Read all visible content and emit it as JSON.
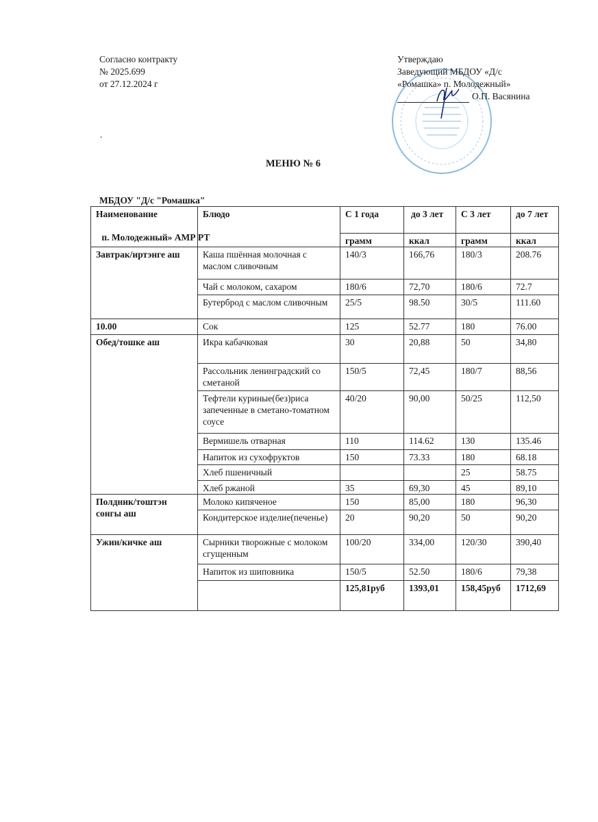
{
  "left_header": [
    "Согласно контракту",
    "№ 2025.699",
    "от 27.12.2024 г"
  ],
  "right_header": {
    "line1": "Утверждаю",
    "line2": "Заведующий МБДОУ «Д/с",
    "line3": "«Ромашка» п. Молодежный»",
    "signer": "О.П. Васянина"
  },
  "stamp_color": "#7fb3dc",
  "dot": ".",
  "title": "МЕНЮ № 6",
  "org": [
    "МБДОУ \"Д/с \"Ромашка\"",
    " п. Молодежный» АМР РТ"
  ],
  "table": {
    "headers": [
      "Наименование",
      "Блюдо",
      "С 1 года",
      "до 3 лет",
      "С 3 лет",
      "до 7 лет"
    ],
    "subheaders": [
      "грамм",
      "ккал",
      "грамм",
      "ккал"
    ],
    "rows": [
      {
        "meal": "Завтрак/иртэнге аш",
        "dish": "Каша пшённая молочная с маслом сливочным",
        "g1": "140/3",
        "k1": "166,76",
        "g2": "180/3",
        "k2": "208.76"
      },
      {
        "meal": "",
        "dish": "Чай с молоком, сахаром",
        "g1": "180/6",
        "k1": "72,70",
        "g2": "180/6",
        "k2": "72.7"
      },
      {
        "meal": "",
        "dish": "Бутерброд с  маслом сливочным",
        "g1": "25/5",
        "k1": "98.50",
        "g2": "30/5",
        "k2": "111.60"
      },
      {
        "meal": "10.00",
        "dish": "Сок",
        "g1": "125",
        "k1": "52.77",
        "g2": "180",
        "k2": "76.00"
      },
      {
        "meal": "Обед/тошке аш",
        "dish": "Икра кабачковая",
        "g1": "30",
        "k1": "20,88",
        "g2": "50",
        "k2": "34,80"
      },
      {
        "meal": "",
        "dish": "Рассольник ленинградский со сметаной",
        "g1": "150/5",
        "k1": "72,45",
        "g2": "180/7",
        "k2": "88,56"
      },
      {
        "meal": "",
        "dish": "Тефтели куриные(без)риса запеченные в сметано-томатном соусе",
        "g1": "40/20",
        "k1": "90,00",
        "g2": "50/25",
        "k2": "112,50"
      },
      {
        "meal": "",
        "dish": "Вермишель отварная",
        "g1": "110",
        "k1": "114.62",
        "g2": "130",
        "k2": "135.46"
      },
      {
        "meal": "",
        "dish": "Напиток из сухофруктов",
        "g1": "150",
        "k1": "73.33",
        "g2": "180",
        "k2": "68.18"
      },
      {
        "meal": "",
        "dish": "Хлеб пшеничный",
        "g1": "",
        "k1": "",
        "g2": "25",
        "k2": "58.75"
      },
      {
        "meal": "",
        "dish": "Хлеб ржаной",
        "g1": "35",
        "k1": "69,30",
        "g2": "45",
        "k2": "89,10"
      },
      {
        "meal": "Полдник/тоштэн сонгы аш",
        "dish": "Молоко кипяченое",
        "g1": "150",
        "k1": "85,00",
        "g2": "180",
        "k2": "96,30"
      },
      {
        "meal": "",
        "dish": "Кондитерское изделие(печенье)",
        "g1": "20",
        "k1": "90,20",
        "g2": "50",
        "k2": "90,20"
      },
      {
        "meal": "Ужин/кичке аш",
        "dish": "Сырники творожные с молоком сгущенным",
        "g1": "100/20",
        "k1": "334,00",
        "g2": "120/30",
        "k2": "390,40"
      },
      {
        "meal": "",
        "dish": "Напиток из шиповника",
        "g1": "150/5",
        "k1": "52.50",
        "g2": "180/6",
        "k2": "79,38"
      }
    ],
    "totals": {
      "g1": "125,81руб",
      "k1": "1393,01",
      "g2": "158,45руб",
      "k2": "1712,69"
    }
  }
}
